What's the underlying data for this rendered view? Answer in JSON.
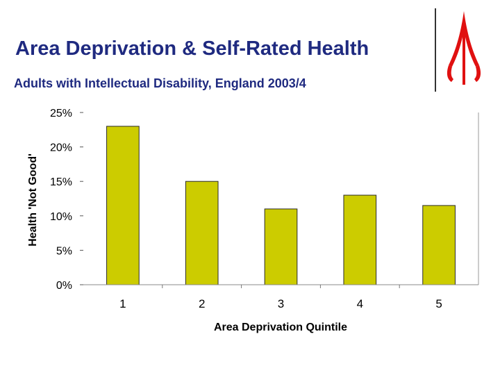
{
  "header": {
    "title": "Area Deprivation & Self-Rated Health",
    "subtitle": "Adults with Intellectual Disability, England 2003/4"
  },
  "logo": {
    "icon": "red-trident-logo-icon",
    "color": "#e01010"
  },
  "colors": {
    "bar": "#cccc00",
    "title": "#1f2a80"
  },
  "chart_data": {
    "type": "bar",
    "title": "Area Deprivation & Self-Rated Health",
    "xlabel": "Area Deprivation Quintile",
    "ylabel": "Health 'Not Good'",
    "categories": [
      "1",
      "2",
      "3",
      "4",
      "5"
    ],
    "values": [
      23,
      15,
      11,
      13,
      11.5
    ],
    "ylim": [
      0,
      25
    ],
    "yticks": [
      0,
      5,
      10,
      15,
      20,
      25
    ],
    "ytick_labels": [
      "0%",
      "5%",
      "10%",
      "15%",
      "20%",
      "25%"
    ],
    "grid": false,
    "legend": "none"
  }
}
